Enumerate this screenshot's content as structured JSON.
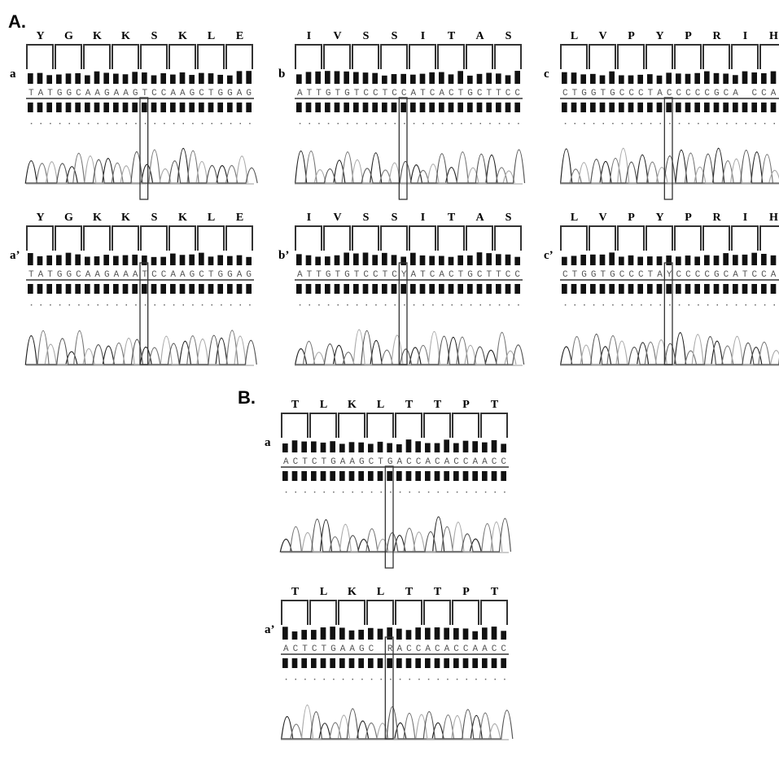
{
  "sections": [
    {
      "title": "A.",
      "panels": [
        {
          "label": "a",
          "amino_acids": [
            "Y",
            "G",
            "K",
            "K",
            "S",
            "K",
            "L",
            "E"
          ],
          "sequence": "TATGGCAAGAAGTCCAAGCTGGAG"
        },
        {
          "label": "b",
          "amino_acids": [
            "I",
            "V",
            "S",
            "S",
            "I",
            "T",
            "A",
            "S"
          ],
          "sequence": "ATTGTGTCCTCCATCACTGCTTCC"
        },
        {
          "label": "c",
          "amino_acids": [
            "L",
            "V",
            "P",
            "Y",
            "P",
            "R",
            "I",
            "H"
          ],
          "sequence": "CTGGTGCCCTACCCCCGCA CCAC"
        },
        {
          "label": "a’",
          "amino_acids": [
            "Y",
            "G",
            "K",
            "K",
            "S",
            "K",
            "L",
            "E"
          ],
          "sequence": "TATGGCAAGAAATCCAAGCTGGAG"
        },
        {
          "label": "b’",
          "amino_acids": [
            "I",
            "V",
            "S",
            "S",
            "I",
            "T",
            "A",
            "S"
          ],
          "sequence": "ATTGTGTCCTCYATCACTGCTTCC"
        },
        {
          "label": "c’",
          "amino_acids": [
            "L",
            "V",
            "P",
            "Y",
            "P",
            "R",
            "I",
            "H"
          ],
          "sequence": "CTGGTGCCCTAYCCCCGCATCCAC"
        }
      ]
    },
    {
      "title": "B.",
      "panels": [
        {
          "label": "a",
          "amino_acids": [
            "T",
            "L",
            "K",
            "L",
            "T",
            "T",
            "P",
            "T"
          ],
          "sequence": "ACTCTGAAGCTGACCACACCAACC"
        },
        {
          "label": "a’",
          "amino_acids": [
            "T",
            "L",
            "K",
            "L",
            "T",
            "T",
            "P",
            "T"
          ],
          "sequence": "ACTCTGAAGC RACCACACCAACC"
        }
      ]
    }
  ]
}
